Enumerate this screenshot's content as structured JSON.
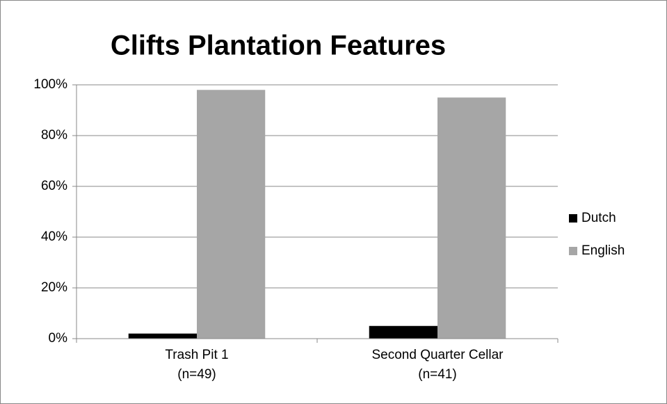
{
  "chart_data": {
    "type": "bar",
    "title": "Clifts Plantation Features",
    "categories": [
      [
        "Trash Pit 1",
        "(n=49)"
      ],
      [
        "Second Quarter Cellar",
        "(n=41)"
      ]
    ],
    "series": [
      {
        "name": "Dutch",
        "color": "#000000",
        "values": [
          2,
          5
        ]
      },
      {
        "name": "English",
        "color": "#a6a6a6",
        "values": [
          98,
          95
        ]
      }
    ],
    "ylim": [
      0,
      100
    ],
    "yticks": [
      {
        "value": 0,
        "label": "0%"
      },
      {
        "value": 20,
        "label": "20%"
      },
      {
        "value": 40,
        "label": "40%"
      },
      {
        "value": 60,
        "label": "60%"
      },
      {
        "value": 80,
        "label": "80%"
      },
      {
        "value": 100,
        "label": "100%"
      }
    ],
    "grid": true,
    "legend": "right"
  }
}
